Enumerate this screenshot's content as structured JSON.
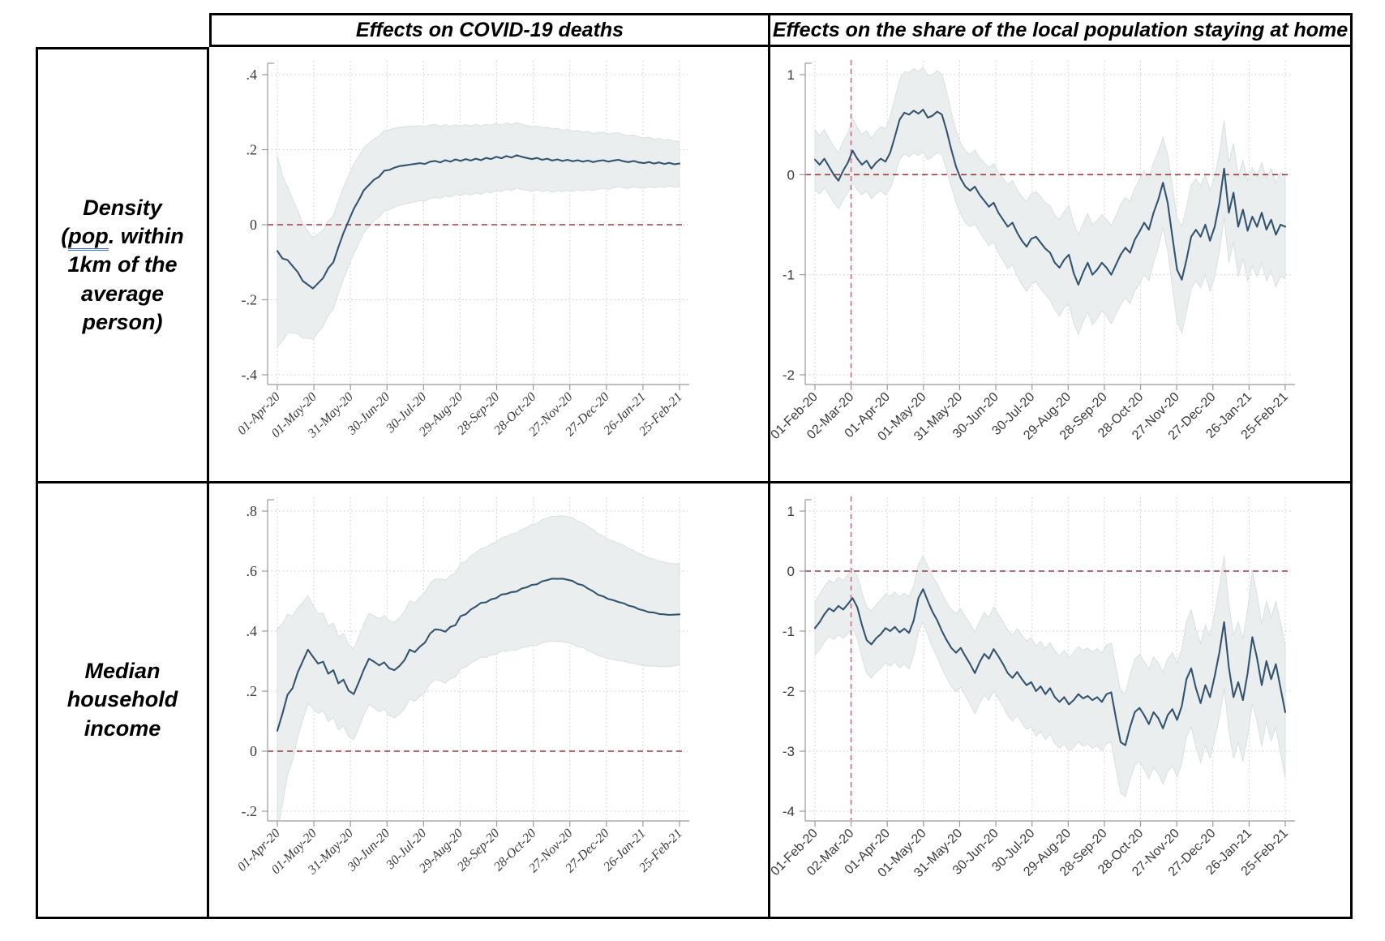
{
  "figure": {
    "headers": {
      "col1": "Effects on COVID-19 deaths",
      "col2": "Effects on the share of the local population staying at home"
    },
    "rows": [
      {
        "line1": "Density",
        "line2_prefix": "(",
        "line2_underlined": "pop",
        "line2_suffix": ". within",
        "line3": "1km of the",
        "line4": "average person)"
      },
      {
        "line1": "Median",
        "line2": "household",
        "line3": "income"
      }
    ],
    "colors": {
      "line": "#34536f",
      "band_fill": "#e8edee",
      "band_edge": "#d7e0e1",
      "zero_line": "#9b3a42",
      "event_line": "#cb7b91",
      "grid": "#c9c9c9",
      "axis": "#9a9a9a",
      "tick_label": "#3a3a3a",
      "grammar_underline": "#3b6fd4"
    }
  },
  "chart_data": [
    {
      "id": "deaths_density",
      "type": "line",
      "title": "",
      "style": "serif",
      "ylim": [
        -0.4,
        0.4
      ],
      "y_tick_values": [
        0.4,
        0.2,
        0,
        -0.2,
        -0.4
      ],
      "y_tick_labels": [
        ".4",
        ".2",
        "0",
        "-.2",
        "-.4"
      ],
      "x_tick_labels": [
        "01-Apr-20",
        "01-May-20",
        "31-May-20",
        "30-Jun-20",
        "30-Jul-20",
        "29-Aug-20",
        "28-Sep-20",
        "28-Oct-20",
        "27-Nov-20",
        "27-Dec-20",
        "26-Jan-21",
        "25-Feb-21"
      ],
      "zero_ref": 0,
      "event_ref_frac": null,
      "y": [
        -0.07,
        -0.09,
        -0.094,
        -0.11,
        -0.126,
        -0.15,
        -0.16,
        -0.17,
        -0.156,
        -0.142,
        -0.116,
        -0.1,
        -0.06,
        -0.022,
        0.01,
        0.042,
        0.066,
        0.092,
        0.106,
        0.12,
        0.128,
        0.144,
        0.146,
        0.152,
        0.156,
        0.158,
        0.16,
        0.162,
        0.164,
        0.162,
        0.168,
        0.17,
        0.166,
        0.172,
        0.168,
        0.174,
        0.17,
        0.175,
        0.171,
        0.176,
        0.172,
        0.178,
        0.175,
        0.181,
        0.177,
        0.183,
        0.179,
        0.185,
        0.181,
        0.178,
        0.175,
        0.178,
        0.173,
        0.176,
        0.171,
        0.174,
        0.17,
        0.173,
        0.169,
        0.172,
        0.168,
        0.171,
        0.167,
        0.17,
        0.172,
        0.168,
        0.171,
        0.173,
        0.169,
        0.167,
        0.17,
        0.166,
        0.164,
        0.167,
        0.163,
        0.166,
        0.162,
        0.165,
        0.161,
        0.163
      ],
      "ci": [
        0.255,
        0.22,
        0.195,
        0.178,
        0.165,
        0.152,
        0.143,
        0.136,
        0.131,
        0.128,
        0.126,
        0.124,
        0.123,
        0.122,
        0.121,
        0.119,
        0.116,
        0.113,
        0.111,
        0.109,
        0.108,
        0.107,
        0.106,
        0.105,
        0.104,
        0.103,
        0.102,
        0.101,
        0.1,
        0.099,
        0.098,
        0.097,
        0.096,
        0.095,
        0.094,
        0.093,
        0.093,
        0.092,
        0.092,
        0.091,
        0.091,
        0.09,
        0.09,
        0.089,
        0.089,
        0.088,
        0.088,
        0.087,
        0.087,
        0.086,
        0.086,
        0.085,
        0.085,
        0.084,
        0.084,
        0.083,
        0.082,
        0.081,
        0.08,
        0.079,
        0.078,
        0.077,
        0.076,
        0.075,
        0.075,
        0.074,
        0.073,
        0.072,
        0.071,
        0.07,
        0.069,
        0.068,
        0.067,
        0.066,
        0.065,
        0.064,
        0.063,
        0.062,
        0.061,
        0.06
      ]
    },
    {
      "id": "home_density",
      "type": "line",
      "title": "",
      "style": "sans",
      "ylim": [
        -2,
        1
      ],
      "y_tick_values": [
        1,
        0,
        -1,
        -2
      ],
      "y_tick_labels": [
        "1",
        "0",
        "-1",
        "-2"
      ],
      "x_tick_labels": [
        "01-Feb-20",
        "02-Mar-20",
        "01-Apr-20",
        "01-May-20",
        "31-May-20",
        "30-Jun-20",
        "30-Jul-20",
        "29-Aug-20",
        "28-Sep-20",
        "28-Oct-20",
        "27-Nov-20",
        "27-Dec-20",
        "26-Jan-21",
        "25-Feb-21"
      ],
      "zero_ref": 0,
      "event_ref_frac": 0.0769,
      "y": [
        0.15,
        0.1,
        0.16,
        0.08,
        0.0,
        -0.06,
        0.04,
        0.12,
        0.24,
        0.16,
        0.1,
        0.14,
        0.06,
        0.12,
        0.16,
        0.13,
        0.22,
        0.38,
        0.55,
        0.62,
        0.6,
        0.64,
        0.61,
        0.65,
        0.57,
        0.59,
        0.63,
        0.6,
        0.44,
        0.25,
        0.08,
        -0.04,
        -0.12,
        -0.16,
        -0.12,
        -0.2,
        -0.26,
        -0.32,
        -0.28,
        -0.38,
        -0.45,
        -0.52,
        -0.48,
        -0.58,
        -0.66,
        -0.72,
        -0.64,
        -0.62,
        -0.68,
        -0.74,
        -0.78,
        -0.88,
        -0.93,
        -0.85,
        -0.8,
        -0.98,
        -1.1,
        -0.98,
        -0.88,
        -1.0,
        -0.95,
        -0.88,
        -0.93,
        -1.0,
        -0.9,
        -0.8,
        -0.73,
        -0.78,
        -0.65,
        -0.57,
        -0.48,
        -0.55,
        -0.38,
        -0.25,
        -0.08,
        -0.28,
        -0.62,
        -0.95,
        -1.05,
        -0.85,
        -0.62,
        -0.55,
        -0.62,
        -0.5,
        -0.66,
        -0.52,
        -0.28,
        0.06,
        -0.38,
        -0.18,
        -0.52,
        -0.35,
        -0.56,
        -0.42,
        -0.52,
        -0.38,
        -0.55,
        -0.45,
        -0.6,
        -0.5,
        -0.52
      ],
      "ci": [
        0.3,
        0.29,
        0.29,
        0.28,
        0.28,
        0.28,
        0.29,
        0.3,
        0.32,
        0.31,
        0.3,
        0.3,
        0.3,
        0.31,
        0.32,
        0.33,
        0.36,
        0.38,
        0.4,
        0.41,
        0.42,
        0.42,
        0.42,
        0.42,
        0.42,
        0.41,
        0.41,
        0.4,
        0.39,
        0.37,
        0.36,
        0.35,
        0.36,
        0.36,
        0.37,
        0.37,
        0.38,
        0.39,
        0.39,
        0.4,
        0.41,
        0.42,
        0.42,
        0.43,
        0.44,
        0.45,
        0.45,
        0.45,
        0.46,
        0.46,
        0.47,
        0.47,
        0.48,
        0.48,
        0.49,
        0.5,
        0.5,
        0.49,
        0.49,
        0.5,
        0.49,
        0.48,
        0.48,
        0.49,
        0.49,
        0.5,
        0.5,
        0.51,
        0.51,
        0.52,
        0.52,
        0.51,
        0.5,
        0.48,
        0.45,
        0.48,
        0.5,
        0.52,
        0.53,
        0.52,
        0.52,
        0.51,
        0.51,
        0.5,
        0.5,
        0.5,
        0.49,
        0.48,
        0.5,
        0.49,
        0.5,
        0.49,
        0.5,
        0.49,
        0.5,
        0.5,
        0.51,
        0.51,
        0.52,
        0.52,
        0.52
      ]
    },
    {
      "id": "deaths_income",
      "type": "line",
      "title": "",
      "style": "serif",
      "ylim": [
        -0.2,
        0.8
      ],
      "y_tick_values": [
        0.8,
        0.6,
        0.4,
        0.2,
        0,
        -0.2
      ],
      "y_tick_labels": [
        ".8",
        ".6",
        ".4",
        ".2",
        "0",
        "-.2"
      ],
      "x_tick_labels": [
        "01-Apr-20",
        "01-May-20",
        "31-May-20",
        "30-Jun-20",
        "30-Jul-20",
        "29-Aug-20",
        "28-Sep-20",
        "28-Oct-20",
        "27-Nov-20",
        "27-Dec-20",
        "26-Jan-21",
        "25-Feb-21"
      ],
      "zero_ref": 0,
      "event_ref_frac": null,
      "y": [
        0.068,
        0.125,
        0.188,
        0.21,
        0.262,
        0.3,
        0.338,
        0.315,
        0.292,
        0.298,
        0.258,
        0.27,
        0.226,
        0.238,
        0.202,
        0.19,
        0.23,
        0.272,
        0.308,
        0.298,
        0.286,
        0.296,
        0.276,
        0.27,
        0.284,
        0.304,
        0.338,
        0.33,
        0.348,
        0.362,
        0.392,
        0.406,
        0.404,
        0.398,
        0.414,
        0.42,
        0.45,
        0.456,
        0.472,
        0.482,
        0.494,
        0.496,
        0.506,
        0.51,
        0.522,
        0.524,
        0.53,
        0.532,
        0.542,
        0.546,
        0.554,
        0.556,
        0.566,
        0.57,
        0.575,
        0.574,
        0.575,
        0.571,
        0.567,
        0.557,
        0.553,
        0.542,
        0.533,
        0.521,
        0.516,
        0.507,
        0.503,
        0.497,
        0.493,
        0.485,
        0.481,
        0.473,
        0.469,
        0.463,
        0.462,
        0.457,
        0.456,
        0.454,
        0.455,
        0.456
      ],
      "ci": [
        0.34,
        0.3,
        0.268,
        0.24,
        0.215,
        0.195,
        0.18,
        0.172,
        0.166,
        0.162,
        0.159,
        0.157,
        0.155,
        0.154,
        0.153,
        0.152,
        0.151,
        0.151,
        0.152,
        0.153,
        0.155,
        0.156,
        0.158,
        0.159,
        0.161,
        0.162,
        0.163,
        0.164,
        0.165,
        0.166,
        0.167,
        0.168,
        0.17,
        0.171,
        0.172,
        0.173,
        0.175,
        0.176,
        0.178,
        0.179,
        0.181,
        0.183,
        0.185,
        0.187,
        0.189,
        0.191,
        0.193,
        0.195,
        0.197,
        0.199,
        0.201,
        0.203,
        0.205,
        0.206,
        0.208,
        0.209,
        0.21,
        0.21,
        0.21,
        0.209,
        0.208,
        0.207,
        0.205,
        0.203,
        0.201,
        0.199,
        0.197,
        0.195,
        0.193,
        0.19,
        0.188,
        0.185,
        0.183,
        0.18,
        0.178,
        0.176,
        0.174,
        0.172,
        0.17,
        0.168
      ]
    },
    {
      "id": "home_income",
      "type": "line",
      "title": "",
      "style": "sans",
      "ylim": [
        -4,
        1
      ],
      "y_tick_values": [
        1,
        0,
        -1,
        -2,
        -3,
        -4
      ],
      "y_tick_labels": [
        "1",
        "0",
        "-1",
        "-2",
        "-3",
        "-4"
      ],
      "x_tick_labels": [
        "01-Feb-20",
        "02-Mar-20",
        "01-Apr-20",
        "01-May-20",
        "31-May-20",
        "30-Jun-20",
        "30-Jul-20",
        "29-Aug-20",
        "28-Sep-20",
        "28-Oct-20",
        "27-Nov-20",
        "27-Dec-20",
        "26-Jan-21",
        "25-Feb-21"
      ],
      "zero_ref": 0,
      "event_ref_frac": 0.0769,
      "y": [
        -0.95,
        -0.85,
        -0.72,
        -0.62,
        -0.67,
        -0.58,
        -0.64,
        -0.55,
        -0.45,
        -0.6,
        -0.9,
        -1.15,
        -1.22,
        -1.12,
        -1.05,
        -0.95,
        -1.0,
        -0.93,
        -1.02,
        -0.96,
        -1.03,
        -0.82,
        -0.45,
        -0.3,
        -0.5,
        -0.68,
        -0.82,
        -1.0,
        -1.15,
        -1.28,
        -1.36,
        -1.28,
        -1.42,
        -1.55,
        -1.7,
        -1.52,
        -1.38,
        -1.46,
        -1.3,
        -1.42,
        -1.55,
        -1.7,
        -1.78,
        -1.68,
        -1.8,
        -1.9,
        -1.85,
        -2.0,
        -1.92,
        -2.05,
        -1.95,
        -2.1,
        -2.18,
        -2.1,
        -2.22,
        -2.15,
        -2.05,
        -2.12,
        -2.08,
        -2.15,
        -2.1,
        -2.18,
        -2.05,
        -2.02,
        -2.45,
        -2.85,
        -2.9,
        -2.6,
        -2.35,
        -2.28,
        -2.4,
        -2.55,
        -2.35,
        -2.45,
        -2.62,
        -2.4,
        -2.3,
        -2.48,
        -2.25,
        -1.8,
        -1.62,
        -1.95,
        -2.2,
        -1.9,
        -2.1,
        -1.75,
        -1.35,
        -0.85,
        -1.6,
        -2.1,
        -1.85,
        -2.15,
        -1.7,
        -1.1,
        -1.45,
        -1.9,
        -1.5,
        -1.8,
        -1.55,
        -1.95,
        -2.35
      ],
      "ci": [
        0.45,
        0.46,
        0.46,
        0.47,
        0.47,
        0.48,
        0.48,
        0.49,
        0.5,
        0.52,
        0.54,
        0.55,
        0.56,
        0.56,
        0.57,
        0.57,
        0.58,
        0.58,
        0.59,
        0.59,
        0.6,
        0.58,
        0.56,
        0.55,
        0.57,
        0.59,
        0.61,
        0.62,
        0.63,
        0.64,
        0.65,
        0.65,
        0.66,
        0.67,
        0.68,
        0.68,
        0.69,
        0.69,
        0.7,
        0.7,
        0.71,
        0.71,
        0.72,
        0.72,
        0.73,
        0.74,
        0.74,
        0.75,
        0.75,
        0.76,
        0.76,
        0.77,
        0.77,
        0.78,
        0.78,
        0.79,
        0.79,
        0.8,
        0.8,
        0.8,
        0.81,
        0.81,
        0.82,
        0.83,
        0.84,
        0.85,
        0.86,
        0.87,
        0.88,
        0.89,
        0.9,
        0.91,
        0.92,
        0.92,
        0.93,
        0.94,
        0.94,
        0.95,
        0.95,
        0.96,
        0.97,
        0.98,
        0.99,
        1.0,
        1.02,
        1.05,
        1.08,
        1.1,
        1.05,
        1.02,
        1.0,
        1.02,
        1.05,
        1.1,
        1.05,
        1.02,
        1.0,
        1.02,
        1.05,
        1.08,
        1.1
      ]
    }
  ]
}
